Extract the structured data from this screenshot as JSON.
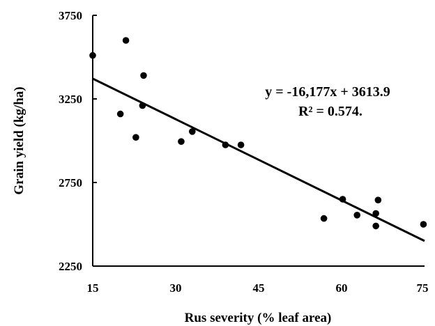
{
  "chart_data": {
    "type": "scatter",
    "xlabel": "Rus severity (% leaf area)",
    "ylabel": "Grain yield (kg/ha)",
    "xlim": [
      15,
      75
    ],
    "ylim": [
      2250,
      3750
    ],
    "xticks": [
      "15",
      "30",
      "45",
      "60",
      "75"
    ],
    "yticks": [
      "2250",
      "2750",
      "3250",
      "3750"
    ],
    "grid": false,
    "points": [
      {
        "x": 15.0,
        "y": 3510
      },
      {
        "x": 21.0,
        "y": 3600
      },
      {
        "x": 24.2,
        "y": 3390
      },
      {
        "x": 20.0,
        "y": 3160
      },
      {
        "x": 24.0,
        "y": 3210
      },
      {
        "x": 22.8,
        "y": 3020
      },
      {
        "x": 31.0,
        "y": 2995
      },
      {
        "x": 33.0,
        "y": 3055
      },
      {
        "x": 39.0,
        "y": 2975
      },
      {
        "x": 41.8,
        "y": 2975
      },
      {
        "x": 56.8,
        "y": 2535
      },
      {
        "x": 60.2,
        "y": 2650
      },
      {
        "x": 62.8,
        "y": 2555
      },
      {
        "x": 66.2,
        "y": 2565
      },
      {
        "x": 66.6,
        "y": 2645
      },
      {
        "x": 66.2,
        "y": 2490
      },
      {
        "x": 74.8,
        "y": 2500
      }
    ],
    "trendline": {
      "x_start": 15,
      "y_start": 3371.3,
      "x_end": 75,
      "y_end": 2400.6,
      "color": "#000000"
    },
    "annotations": [
      "y = -16,177x + 3613.9",
      "R² = 0.574."
    ],
    "marker_color": "#000000"
  }
}
